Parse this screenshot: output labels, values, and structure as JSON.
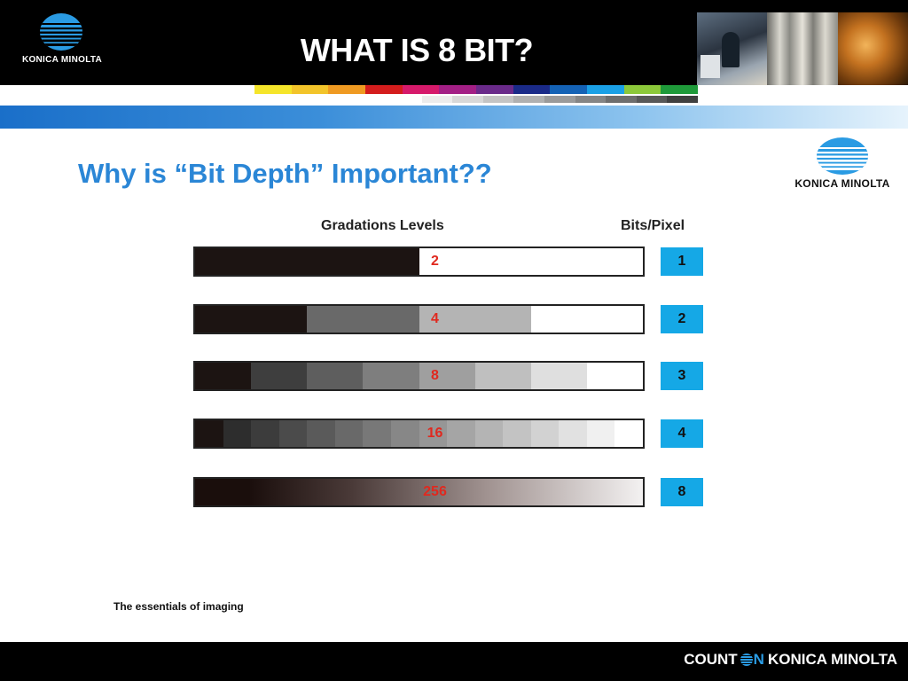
{
  "header": {
    "logo_text": "KONICA MINOLTA",
    "title": "WHAT IS 8 BIT?"
  },
  "colors": {
    "brand_blue": "#2a86d6",
    "bits_box": "#15a8e6",
    "level_label": "#e0291f",
    "color_strip": [
      "#f5e52a",
      "#f2c42a",
      "#ef9a22",
      "#d41d1d",
      "#d61a6b",
      "#a31f85",
      "#6a2a8a",
      "#1a2a88",
      "#1462b5",
      "#1aa0e6",
      "#8cc83a",
      "#1f9a3a"
    ],
    "gray_strip": [
      "#ffffff",
      "#ececec",
      "#d8d8d8",
      "#c4c4c4",
      "#b0b0b0",
      "#9a9a9a",
      "#858585",
      "#6e6e6e",
      "#585858",
      "#404040"
    ]
  },
  "content": {
    "subtitle": "Why is “Bit Depth” Important??",
    "side_logo_text": "KONICA MINOLTA",
    "col_levels": "Gradations Levels",
    "col_bits": "Bits/Pixel",
    "rows": [
      {
        "levels": "2",
        "bits": "1"
      },
      {
        "levels": "4",
        "bits": "2"
      },
      {
        "levels": "8",
        "bits": "3"
      },
      {
        "levels": "16",
        "bits": "4"
      },
      {
        "levels": "256",
        "bits": "8"
      }
    ],
    "footnote": "The essentials of imaging"
  },
  "footer": {
    "count": "COUNT",
    "on": "N",
    "brand": "KONICA MINOLTA"
  }
}
